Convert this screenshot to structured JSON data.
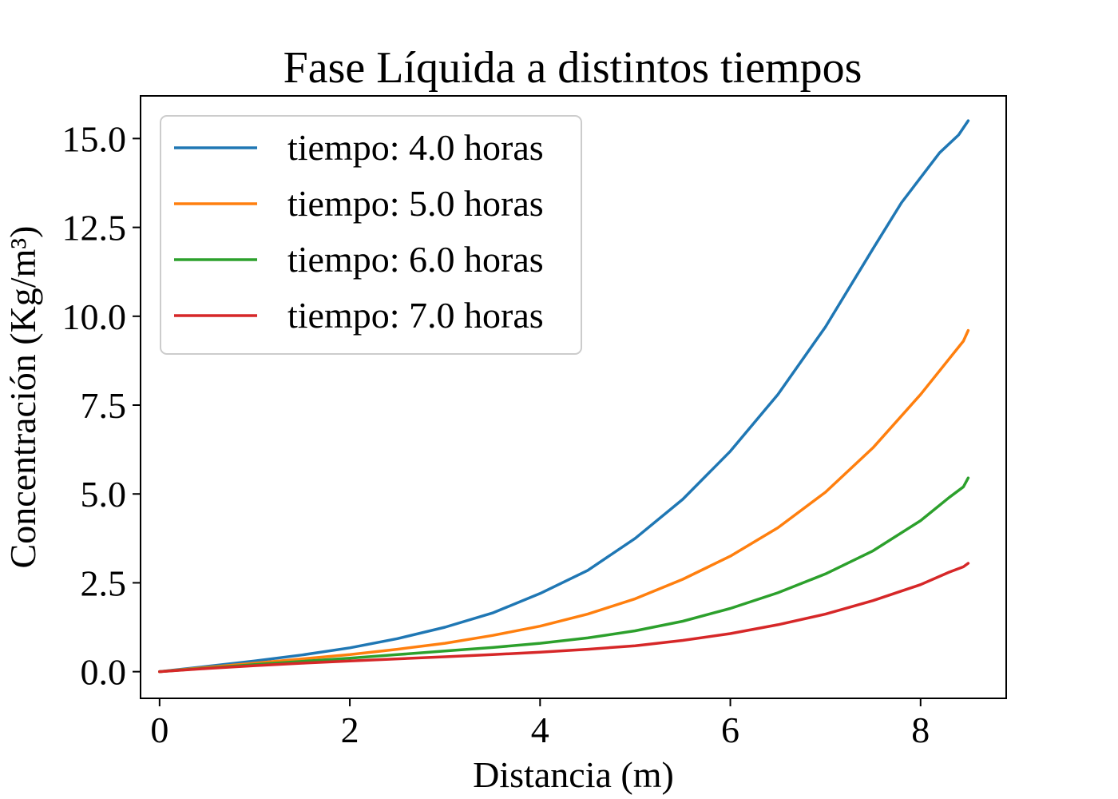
{
  "chart_data": {
    "type": "line",
    "title": "Fase Líquida a distintos tiempos",
    "xlabel": "Distancia (m)",
    "ylabel": "Concentración (Kg/m³)",
    "xlim": [
      -0.2,
      8.9
    ],
    "ylim": [
      -0.75,
      16.2
    ],
    "xticks": [
      0,
      2,
      4,
      6,
      8
    ],
    "xtick_labels": [
      "0",
      "2",
      "4",
      "6",
      "8"
    ],
    "yticks": [
      0,
      2.5,
      5,
      7.5,
      10,
      12.5,
      15
    ],
    "ytick_labels": [
      "0.0",
      "2.5",
      "5.0",
      "7.5",
      "10.0",
      "12.5",
      "15.0"
    ],
    "grid": false,
    "legend_position": "top-left",
    "series": [
      {
        "name": "tiempo: 4.0 horas",
        "color": "#1f77b4",
        "x": [
          0,
          0.5,
          1,
          1.5,
          2,
          2.5,
          3,
          3.5,
          4,
          4.5,
          5,
          5.5,
          6,
          6.5,
          7,
          7.5,
          7.8,
          8,
          8.2,
          8.4,
          8.5
        ],
        "y": [
          0,
          0.15,
          0.3,
          0.47,
          0.67,
          0.93,
          1.25,
          1.65,
          2.2,
          2.85,
          3.75,
          4.85,
          6.2,
          7.8,
          9.7,
          11.9,
          13.2,
          13.9,
          14.6,
          15.1,
          15.5
        ]
      },
      {
        "name": "tiempo: 5.0 horas",
        "color": "#ff7f0e",
        "x": [
          0,
          0.5,
          1,
          1.5,
          2,
          2.5,
          3,
          3.5,
          4,
          4.5,
          5,
          5.5,
          6,
          6.5,
          7,
          7.5,
          8,
          8.3,
          8.45,
          8.5
        ],
        "y": [
          0,
          0.12,
          0.24,
          0.36,
          0.48,
          0.63,
          0.8,
          1.02,
          1.28,
          1.62,
          2.05,
          2.6,
          3.25,
          4.05,
          5.05,
          6.3,
          7.8,
          8.8,
          9.3,
          9.6
        ]
      },
      {
        "name": "tiempo: 6.0 horas",
        "color": "#2ca02c",
        "x": [
          0,
          0.5,
          1,
          1.5,
          2,
          2.5,
          3,
          3.5,
          4,
          4.5,
          5,
          5.5,
          6,
          6.5,
          7,
          7.5,
          8,
          8.3,
          8.45,
          8.5
        ],
        "y": [
          0,
          0.1,
          0.2,
          0.29,
          0.38,
          0.48,
          0.58,
          0.68,
          0.8,
          0.95,
          1.15,
          1.42,
          1.78,
          2.22,
          2.75,
          3.4,
          4.25,
          4.9,
          5.2,
          5.45
        ]
      },
      {
        "name": "tiempo: 7.0 horas",
        "color": "#d62728",
        "x": [
          0,
          0.5,
          1,
          1.5,
          2,
          2.5,
          3,
          3.5,
          4,
          4.5,
          5,
          5.5,
          6,
          6.5,
          7,
          7.5,
          8,
          8.3,
          8.45,
          8.5
        ],
        "y": [
          0,
          0.09,
          0.17,
          0.24,
          0.3,
          0.36,
          0.42,
          0.48,
          0.55,
          0.63,
          0.73,
          0.88,
          1.07,
          1.32,
          1.62,
          2.0,
          2.45,
          2.8,
          2.95,
          3.05
        ]
      }
    ]
  }
}
